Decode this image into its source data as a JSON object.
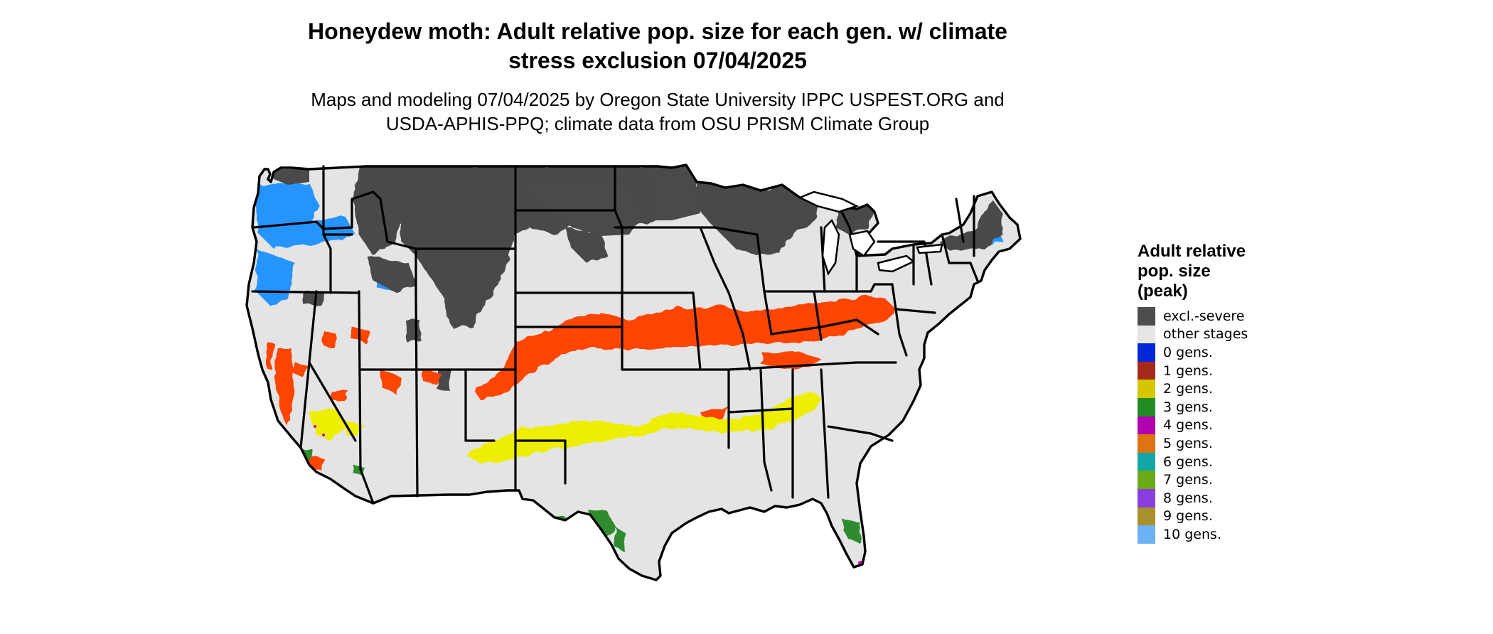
{
  "title_line1": "Honeydew moth: Adult relative pop. size for each gen. w/ climate",
  "title_line2": "stress exclusion 07/04/2025",
  "subtitle_line1": "Maps and modeling 07/04/2025 by Oregon State University IPPC USPEST.ORG and",
  "subtitle_line2": "USDA-APHIS-PPQ; climate data from OSU PRISM Climate Group",
  "map": {
    "colors": {
      "background": "#e4e4e4",
      "excluded": "#4a4a4a",
      "border": "#000000",
      "gen0": "#0033dd",
      "gen1_orange": "#ff4500",
      "gen2": "#eeee00",
      "gen3": "#2e8b2e",
      "gen4": "#cc00cc",
      "gen10": "#1e90ff"
    }
  },
  "legend": {
    "title_lines": [
      "Adult relative",
      "pop. size",
      "(peak)"
    ],
    "items": [
      {
        "label": "excl.-severe",
        "color": "#4d4d4d"
      },
      {
        "label": "other stages",
        "color": "#e6e6e6"
      },
      {
        "label": "0 gens.",
        "color": "#0028d8"
      },
      {
        "label": "1 gens.",
        "color": "#a52a1c"
      },
      {
        "label": "2 gens.",
        "color": "#d6c600"
      },
      {
        "label": "3 gens.",
        "color": "#238b23"
      },
      {
        "label": "4 gens.",
        "color": "#b000b0"
      },
      {
        "label": "5 gens.",
        "color": "#dd7410"
      },
      {
        "label": "6 gens.",
        "color": "#12a6a6"
      },
      {
        "label": "7 gens.",
        "color": "#6aaa18"
      },
      {
        "label": "8 gens.",
        "color": "#8a3ee0"
      },
      {
        "label": "9 gens.",
        "color": "#a8902a"
      },
      {
        "label": "10 gens.",
        "color": "#6cb2f2"
      }
    ]
  }
}
